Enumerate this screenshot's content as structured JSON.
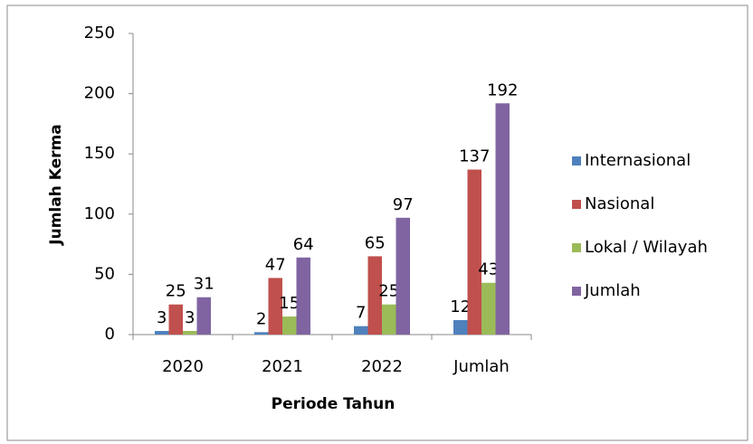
{
  "chart_data": {
    "type": "bar",
    "categories": [
      "2020",
      "2021",
      "2022",
      "Jumlah"
    ],
    "series": [
      {
        "name": "Internasional",
        "color": "#4f81bd",
        "values": [
          3,
          2,
          7,
          12
        ]
      },
      {
        "name": "Nasional",
        "color": "#c0504d",
        "values": [
          25,
          47,
          65,
          137
        ]
      },
      {
        "name": "Lokal / Wilayah",
        "color": "#9bbb59",
        "values": [
          3,
          15,
          25,
          43
        ]
      },
      {
        "name": "Jumlah",
        "color": "#8064a2",
        "values": [
          31,
          64,
          97,
          192
        ]
      }
    ],
    "ylim": [
      0,
      250
    ],
    "yticks": [
      0,
      50,
      100,
      150,
      200,
      250
    ],
    "y_label": "Jumlah Kerma",
    "x_label": "Periode Tahun",
    "legend": "right",
    "grid": false
  }
}
